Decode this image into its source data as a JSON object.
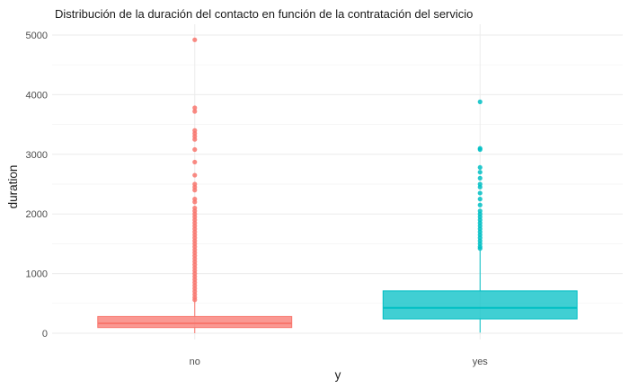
{
  "chart_data": {
    "type": "boxplot",
    "title": "Distribución de la duración del contacto en función de la contratación del servicio",
    "xlabel": "y",
    "ylabel": "duration",
    "categories": [
      "no",
      "yes"
    ],
    "ylim": [
      0,
      5100
    ],
    "yticks": [
      0,
      1000,
      2000,
      3000,
      4000,
      5000
    ],
    "grid": true,
    "legend": "none",
    "colors": {
      "no": "#F8766D",
      "yes": "#00BFC4"
    },
    "series": [
      {
        "category": "no",
        "min": 0,
        "q1": 95,
        "median": 165,
        "q3": 280,
        "whisker_high": 555,
        "outliers": [
          560,
          600,
          650,
          700,
          750,
          800,
          850,
          900,
          950,
          1000,
          1050,
          1100,
          1150,
          1200,
          1250,
          1300,
          1350,
          1400,
          1450,
          1500,
          1550,
          1600,
          1650,
          1700,
          1750,
          1800,
          1850,
          1900,
          1950,
          2000,
          2050,
          2100,
          2200,
          2250,
          2400,
          2450,
          2500,
          2650,
          2870,
          3080,
          3250,
          3300,
          3350,
          3400,
          3720,
          3780,
          4920
        ]
      },
      {
        "category": "yes",
        "min": 10,
        "q1": 240,
        "median": 425,
        "q3": 710,
        "whisker_high": 1390,
        "outliers": [
          1420,
          1450,
          1500,
          1550,
          1600,
          1650,
          1700,
          1750,
          1800,
          1850,
          1900,
          1950,
          2000,
          2050,
          2150,
          2250,
          2350,
          2450,
          2500,
          2600,
          2700,
          2780,
          3080,
          3100,
          3880
        ]
      }
    ]
  }
}
